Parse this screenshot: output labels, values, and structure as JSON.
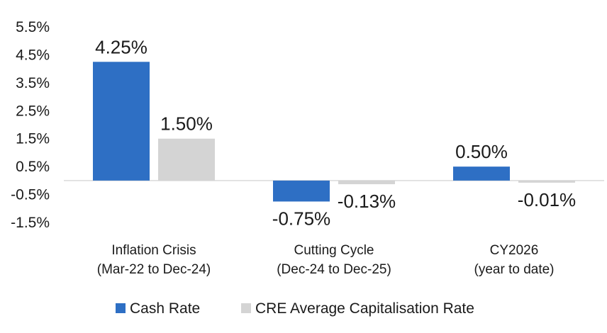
{
  "chart_data": {
    "type": "bar",
    "title": "",
    "xlabel": "",
    "ylabel": "",
    "categories": [
      [
        "Inflation Crisis",
        "(Mar-22 to Dec-24)"
      ],
      [
        "Cutting Cycle",
        "(Dec-24 to Dec-25)"
      ],
      [
        "CY2026",
        "(year to date)"
      ]
    ],
    "series": [
      {
        "name": "Cash Rate",
        "color": "#2e6fc4",
        "values": [
          4.25,
          -0.75,
          0.5
        ],
        "labels": [
          "4.25%",
          "-0.75%",
          "0.50%"
        ]
      },
      {
        "name": "CRE Average Capitalisation Rate",
        "color": "#d4d4d4",
        "values": [
          1.5,
          -0.13,
          -0.01
        ],
        "labels": [
          "1.50%",
          "-0.13%",
          "-0.01%"
        ]
      }
    ],
    "yticks": [
      5.5,
      4.5,
      3.5,
      2.5,
      1.5,
      0.5,
      -0.5,
      -1.5
    ],
    "ytick_labels": [
      "5.5%",
      "4.5%",
      "3.5%",
      "2.5%",
      "1.5%",
      "0.5%",
      "-0.5%",
      "-1.5%"
    ],
    "ylim": [
      -1.5,
      5.5
    ],
    "grid": false,
    "legend_position": "bottom"
  }
}
